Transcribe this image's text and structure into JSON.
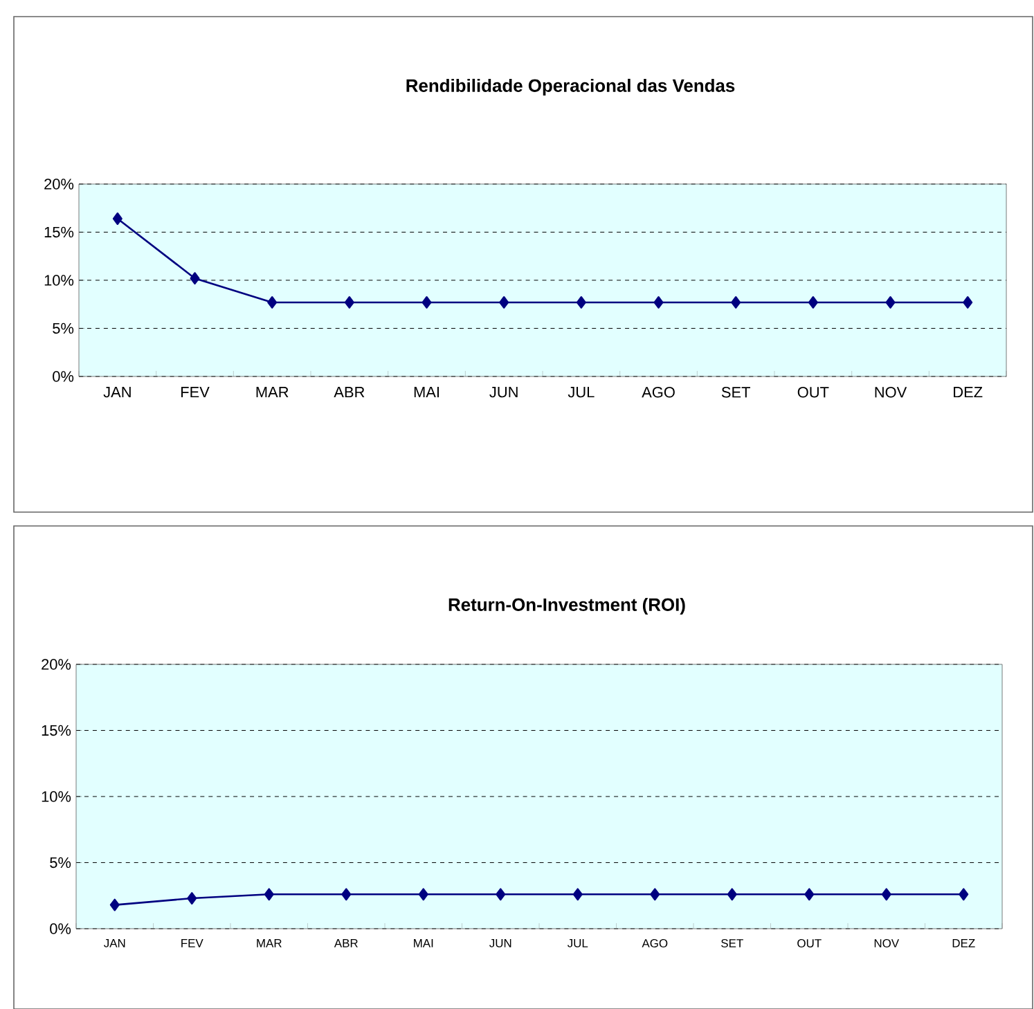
{
  "chart_data": [
    {
      "type": "line",
      "title": "Rendibilidade Operacional das Vendas",
      "categories": [
        "JAN",
        "FEV",
        "MAR",
        "ABR",
        "MAI",
        "JUN",
        "JUL",
        "AGO",
        "SET",
        "OUT",
        "NOV",
        "DEZ"
      ],
      "values": [
        16.4,
        10.2,
        7.7,
        7.7,
        7.7,
        7.7,
        7.7,
        7.7,
        7.7,
        7.7,
        7.7,
        7.7
      ],
      "color": "#000080",
      "ylim": [
        0,
        20
      ],
      "yticks": [
        {
          "value": 0,
          "label": "0%"
        },
        {
          "value": 5,
          "label": "5%"
        },
        {
          "value": 10,
          "label": "10%"
        },
        {
          "value": 15,
          "label": "15%"
        },
        {
          "value": 20,
          "label": "20%"
        }
      ],
      "grid": "y",
      "marker": "diamond",
      "line_style": "solid"
    },
    {
      "type": "line",
      "title": "Return-On-Investment (ROI)",
      "categories": [
        "JAN",
        "FEV",
        "MAR",
        "ABR",
        "MAI",
        "JUN",
        "JUL",
        "AGO",
        "SET",
        "OUT",
        "NOV",
        "DEZ"
      ],
      "values": [
        1.8,
        2.3,
        2.6,
        2.6,
        2.6,
        2.6,
        2.6,
        2.6,
        2.6,
        2.6,
        2.6,
        2.6
      ],
      "color": "#000080",
      "ylim": [
        0,
        20
      ],
      "yticks": [
        {
          "value": 0,
          "label": "0%"
        },
        {
          "value": 5,
          "label": "5%"
        },
        {
          "value": 10,
          "label": "10%"
        },
        {
          "value": 15,
          "label": "15%"
        },
        {
          "value": 20,
          "label": "20%"
        }
      ],
      "grid": "y",
      "marker": "diamond",
      "line_style": "solid"
    }
  ]
}
